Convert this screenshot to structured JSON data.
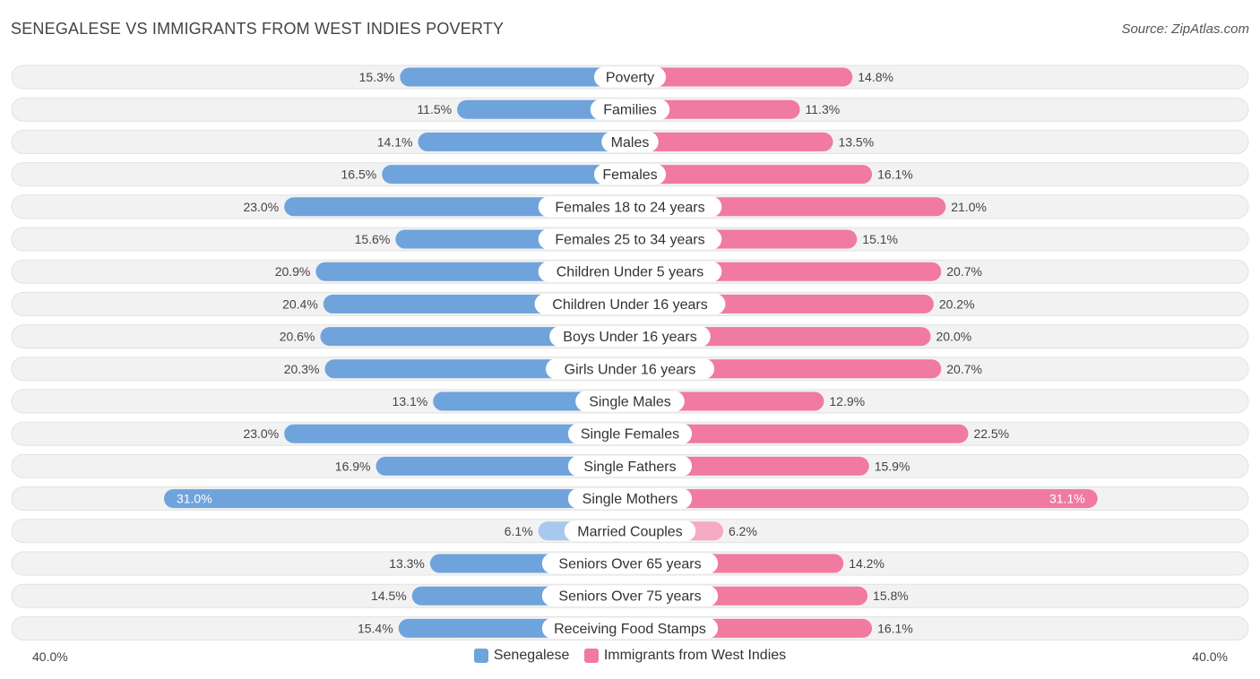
{
  "header": {
    "title": "SENEGALESE VS IMMIGRANTS FROM WEST INDIES POVERTY",
    "source": "Source: ZipAtlas.com"
  },
  "colors": {
    "left": "#6fa3dc",
    "left_light": "#a9c8ed",
    "right": "#f07aa0",
    "right_light": "#f6aac3",
    "track": "#efefef"
  },
  "chart_data": {
    "type": "bar",
    "orientation": "horizontal-diverging",
    "title": "SENEGALESE VS IMMIGRANTS FROM WEST INDIES POVERTY",
    "axis_min_label": "40.0%",
    "axis_max_label": "40.0%",
    "xlim": [
      0,
      40
    ],
    "categories": [
      "Poverty",
      "Families",
      "Males",
      "Females",
      "Females 18 to 24 years",
      "Females 25 to 34 years",
      "Children Under 5 years",
      "Children Under 16 years",
      "Boys Under 16 years",
      "Girls Under 16 years",
      "Single Males",
      "Single Females",
      "Single Fathers",
      "Single Mothers",
      "Married Couples",
      "Seniors Over 65 years",
      "Seniors Over 75 years",
      "Receiving Food Stamps"
    ],
    "series": [
      {
        "name": "Senegalese",
        "values": [
          15.3,
          11.5,
          14.1,
          16.5,
          23.0,
          15.6,
          20.9,
          20.4,
          20.6,
          20.3,
          13.1,
          23.0,
          16.9,
          31.0,
          6.1,
          13.3,
          14.5,
          15.4
        ],
        "labels": [
          "15.3%",
          "11.5%",
          "14.1%",
          "16.5%",
          "23.0%",
          "15.6%",
          "20.9%",
          "20.4%",
          "20.6%",
          "20.3%",
          "13.1%",
          "23.0%",
          "16.9%",
          "31.0%",
          "6.1%",
          "13.3%",
          "14.5%",
          "15.4%"
        ]
      },
      {
        "name": "Immigrants from West Indies",
        "values": [
          14.8,
          11.3,
          13.5,
          16.1,
          21.0,
          15.1,
          20.7,
          20.2,
          20.0,
          20.7,
          12.9,
          22.5,
          15.9,
          31.1,
          6.2,
          14.2,
          15.8,
          16.1
        ],
        "labels": [
          "14.8%",
          "11.3%",
          "13.5%",
          "16.1%",
          "21.0%",
          "15.1%",
          "20.7%",
          "20.2%",
          "20.0%",
          "20.7%",
          "12.9%",
          "22.5%",
          "15.9%",
          "31.1%",
          "6.2%",
          "14.2%",
          "15.8%",
          "16.1%"
        ]
      }
    ],
    "legend": [
      "Senegalese",
      "Immigrants from West Indies"
    ]
  }
}
